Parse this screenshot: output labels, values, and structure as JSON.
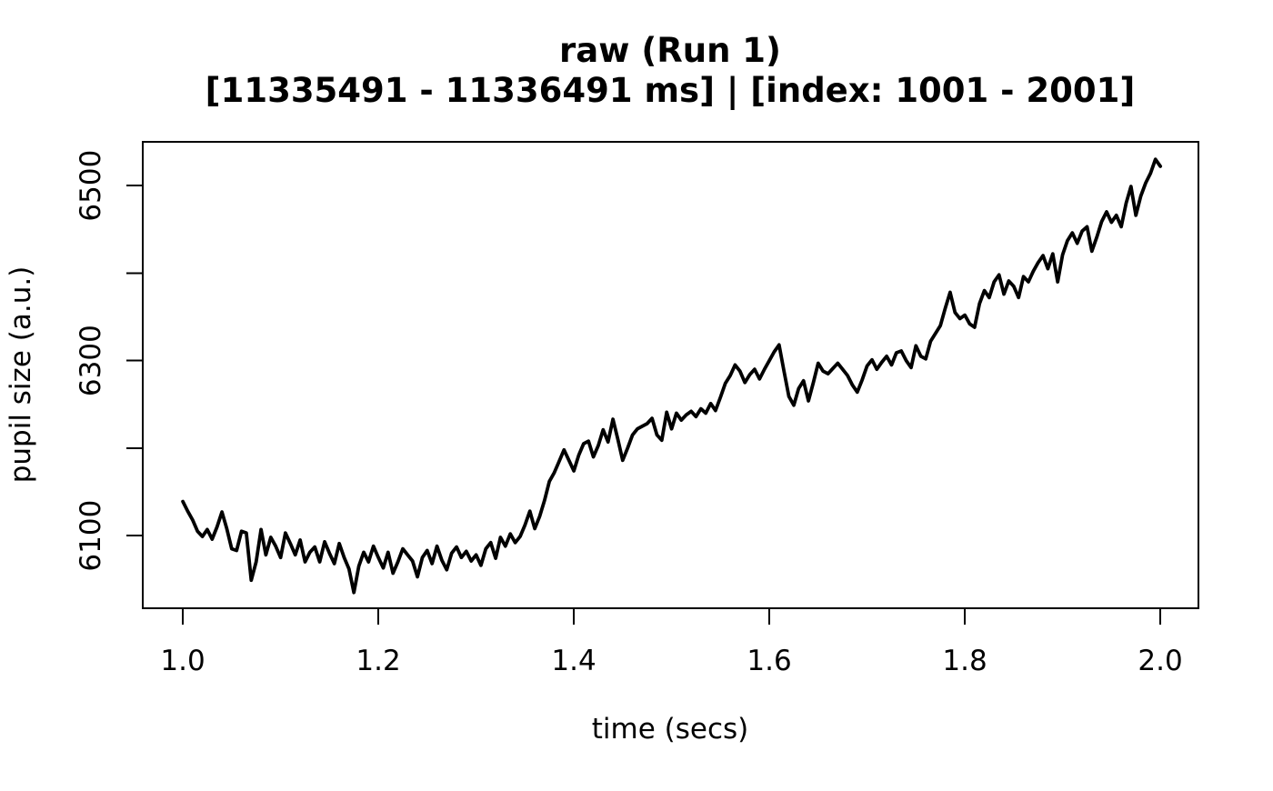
{
  "colors": {
    "background": "#ffffff",
    "foreground": "#000000",
    "line_color": "#000000"
  },
  "chart_data": {
    "type": "line",
    "title": "raw (Run 1)",
    "subtitle": "[11335491 - 11336491 ms] | [index: 1001 - 2001]",
    "xlabel": "time (secs)",
    "ylabel": "pupil size (a.u.)",
    "xlim": [
      0.959,
      2.039
    ],
    "ylim": [
      6017,
      6550
    ],
    "x_ticks": [
      1.0,
      1.2,
      1.4,
      1.6,
      1.8,
      2.0
    ],
    "x_tick_labels": [
      "1.0",
      "1.2",
      "1.4",
      "1.6",
      "1.8",
      "2.0"
    ],
    "y_ticks": [
      6100,
      6200,
      6300,
      6400,
      6500
    ],
    "y_labeled_ticks": [
      6100,
      6300,
      6500
    ],
    "grid": false,
    "legend": false,
    "line_width": 3.8,
    "series": [
      {
        "name": "raw pupil size",
        "x": [
          1,
          1.005,
          1.01,
          1.015,
          1.02,
          1.025,
          1.03,
          1.035,
          1.04,
          1.045,
          1.05,
          1.055,
          1.06,
          1.065,
          1.07,
          1.075,
          1.08,
          1.085,
          1.09,
          1.095,
          1.1,
          1.105,
          1.11,
          1.115,
          1.12,
          1.125,
          1.13,
          1.135,
          1.14,
          1.145,
          1.15,
          1.155,
          1.16,
          1.165,
          1.17,
          1.175,
          1.18,
          1.185,
          1.19,
          1.195,
          1.2,
          1.205,
          1.21,
          1.215,
          1.22,
          1.225,
          1.23,
          1.235,
          1.24,
          1.245,
          1.25,
          1.255,
          1.26,
          1.265,
          1.27,
          1.275,
          1.28,
          1.285,
          1.29,
          1.295,
          1.3,
          1.305,
          1.31,
          1.315,
          1.32,
          1.325,
          1.33,
          1.335,
          1.34,
          1.345,
          1.35,
          1.355,
          1.36,
          1.365,
          1.37,
          1.375,
          1.38,
          1.385,
          1.39,
          1.395,
          1.4,
          1.405,
          1.41,
          1.415,
          1.42,
          1.425,
          1.43,
          1.435,
          1.44,
          1.445,
          1.45,
          1.455,
          1.46,
          1.465,
          1.47,
          1.475,
          1.48,
          1.485,
          1.49,
          1.495,
          1.5,
          1.505,
          1.51,
          1.515,
          1.52,
          1.525,
          1.53,
          1.535,
          1.54,
          1.545,
          1.55,
          1.555,
          1.56,
          1.565,
          1.57,
          1.575,
          1.58,
          1.585,
          1.59,
          1.595,
          1.6,
          1.605,
          1.61,
          1.615,
          1.62,
          1.625,
          1.63,
          1.635,
          1.64,
          1.645,
          1.65,
          1.655,
          1.66,
          1.665,
          1.67,
          1.675,
          1.68,
          1.685,
          1.69,
          1.695,
          1.7,
          1.705,
          1.71,
          1.715,
          1.72,
          1.725,
          1.73,
          1.735,
          1.74,
          1.745,
          1.75,
          1.755,
          1.76,
          1.765,
          1.77,
          1.775,
          1.78,
          1.785,
          1.79,
          1.795,
          1.8,
          1.805,
          1.81,
          1.815,
          1.82,
          1.825,
          1.83,
          1.835,
          1.84,
          1.845,
          1.85,
          1.855,
          1.86,
          1.865,
          1.87,
          1.875,
          1.88,
          1.885,
          1.89,
          1.895,
          1.9,
          1.905,
          1.91,
          1.915,
          1.92,
          1.925,
          1.93,
          1.935,
          1.94,
          1.945,
          1.95,
          1.955,
          1.96,
          1.965,
          1.97,
          1.975,
          1.98,
          1.985,
          1.99,
          1.995,
          2
        ],
        "y": [
          6139,
          6128,
          6118,
          6105,
          6099,
          6107,
          6096,
          6110,
          6127,
          6108,
          6085,
          6083,
          6105,
          6103,
          6049,
          6070,
          6107,
          6078,
          6098,
          6088,
          6075,
          6103,
          6091,
          6078,
          6095,
          6070,
          6081,
          6087,
          6070,
          6093,
          6080,
          6068,
          6091,
          6075,
          6062,
          6035,
          6065,
          6081,
          6070,
          6088,
          6075,
          6063,
          6081,
          6057,
          6070,
          6085,
          6078,
          6071,
          6053,
          6075,
          6083,
          6068,
          6088,
          6072,
          6061,
          6080,
          6087,
          6075,
          6082,
          6071,
          6078,
          6066,
          6085,
          6092,
          6074,
          6098,
          6088,
          6102,
          6092,
          6099,
          6112,
          6128,
          6108,
          6122,
          6140,
          6162,
          6172,
          6185,
          6198,
          6186,
          6174,
          6192,
          6205,
          6208,
          6190,
          6203,
          6221,
          6207,
          6233,
          6210,
          6186,
          6200,
          6215,
          6222,
          6225,
          6228,
          6234,
          6215,
          6209,
          6241,
          6222,
          6240,
          6232,
          6238,
          6242,
          6236,
          6245,
          6240,
          6251,
          6243,
          6258,
          6274,
          6283,
          6295,
          6288,
          6275,
          6284,
          6290,
          6279,
          6290,
          6300,
          6310,
          6318,
          6288,
          6259,
          6249,
          6268,
          6277,
          6254,
          6275,
          6297,
          6288,
          6285,
          6291,
          6297,
          6290,
          6283,
          6272,
          6264,
          6278,
          6294,
          6301,
          6290,
          6298,
          6305,
          6295,
          6309,
          6311,
          6300,
          6292,
          6317,
          6305,
          6302,
          6322,
          6331,
          6340,
          6360,
          6378,
          6355,
          6348,
          6352,
          6342,
          6338,
          6365,
          6380,
          6372,
          6390,
          6398,
          6376,
          6391,
          6385,
          6372,
          6396,
          6390,
          6402,
          6412,
          6420,
          6405,
          6422,
          6390,
          6421,
          6437,
          6446,
          6434,
          6448,
          6453,
          6425,
          6441,
          6459,
          6470,
          6458,
          6466,
          6453,
          6480,
          6499,
          6466,
          6488,
          6503,
          6514,
          6530,
          6522
        ]
      }
    ]
  }
}
